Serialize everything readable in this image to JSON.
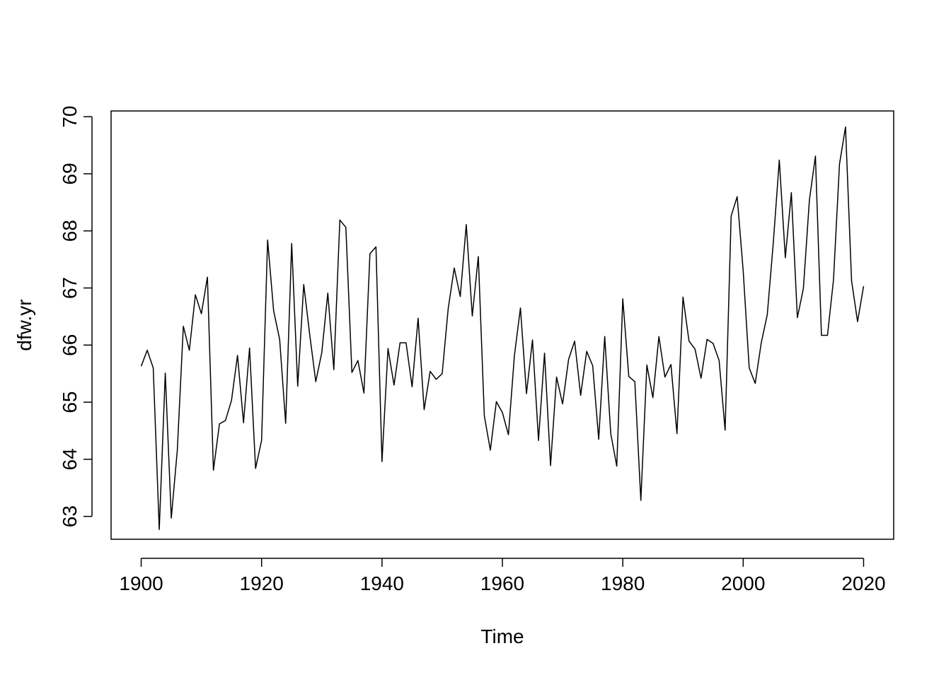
{
  "chart_data": {
    "type": "line",
    "title": "",
    "xlabel": "Time",
    "ylabel": "dfw.yr",
    "xlim": [
      1895,
      2025
    ],
    "ylim": [
      62.6,
      70.1
    ],
    "x_ticks": [
      1900,
      1920,
      1940,
      1960,
      1980,
      2000,
      2020
    ],
    "y_ticks": [
      63,
      64,
      65,
      66,
      67,
      68,
      69,
      70
    ],
    "x_tick_labels": [
      "1900",
      "1920",
      "1940",
      "1960",
      "1980",
      "2000",
      "2020"
    ],
    "y_tick_labels": [
      "63",
      "64",
      "65",
      "66",
      "67",
      "68",
      "69",
      "70"
    ],
    "grid": false,
    "legend": "none",
    "line_color": "#000000",
    "series": [
      {
        "x": [
          1900,
          1901,
          1902,
          1903,
          1904,
          1905,
          1906,
          1907,
          1908,
          1909,
          1910,
          1911,
          1912,
          1913,
          1914,
          1915,
          1916,
          1917,
          1918,
          1919,
          1920,
          1921,
          1922,
          1923,
          1924,
          1925,
          1926,
          1927,
          1928,
          1929,
          1930,
          1931,
          1932,
          1933,
          1934,
          1935,
          1936,
          1937,
          1938,
          1939,
          1940,
          1941,
          1942,
          1943,
          1944,
          1945,
          1946,
          1947,
          1948,
          1949,
          1950,
          1951,
          1952,
          1953,
          1954,
          1955,
          1956,
          1957,
          1958,
          1959,
          1960,
          1961,
          1962,
          1963,
          1964,
          1965,
          1966,
          1967,
          1968,
          1969,
          1970,
          1971,
          1972,
          1973,
          1974,
          1975,
          1976,
          1977,
          1978,
          1979,
          1980,
          1981,
          1982,
          1983,
          1984,
          1985,
          1986,
          1987,
          1988,
          1989,
          1990,
          1991,
          1992,
          1993,
          1994,
          1995,
          1996,
          1997,
          1998,
          1999,
          2000,
          2001,
          2002,
          2003,
          2004,
          2005,
          2006,
          2007,
          2008,
          2009,
          2010,
          2011,
          2012,
          2013,
          2014,
          2015,
          2016,
          2017,
          2018,
          2019,
          2020
        ],
        "values": [
          65.63,
          65.91,
          65.6,
          62.77,
          65.51,
          62.97,
          64.16,
          66.33,
          65.91,
          66.88,
          66.55,
          67.19,
          63.81,
          64.62,
          64.68,
          65.03,
          65.82,
          64.64,
          65.95,
          63.84,
          64.33,
          67.84,
          66.6,
          66.1,
          64.63,
          67.78,
          65.28,
          67.06,
          66.18,
          65.36,
          65.87,
          66.91,
          65.57,
          68.19,
          68.06,
          65.52,
          65.73,
          65.16,
          67.6,
          67.72,
          63.96,
          65.94,
          65.3,
          66.04,
          66.04,
          65.27,
          66.47,
          64.87,
          65.54,
          65.4,
          65.5,
          66.64,
          67.35,
          66.85,
          68.11,
          66.51,
          67.55,
          64.76,
          64.16,
          65.01,
          64.82,
          64.43,
          65.82,
          66.65,
          65.15,
          66.09,
          64.33,
          65.86,
          63.89,
          65.44,
          64.97,
          65.75,
          66.07,
          65.12,
          65.89,
          65.64,
          64.35,
          66.15,
          64.45,
          63.88,
          66.81,
          65.45,
          65.36,
          63.28,
          65.65,
          65.08,
          66.15,
          65.44,
          65.66,
          64.45,
          66.84,
          66.07,
          65.93,
          65.42,
          66.1,
          66.03,
          65.73,
          64.51,
          68.26,
          68.6,
          67.3,
          65.6,
          65.33,
          66.04,
          66.53,
          67.79,
          69.24,
          67.53,
          68.67,
          66.48,
          66.99,
          68.54,
          69.31,
          66.17,
          66.17,
          67.14,
          69.17,
          69.82,
          67.13,
          66.41,
          67.03
        ]
      }
    ]
  }
}
